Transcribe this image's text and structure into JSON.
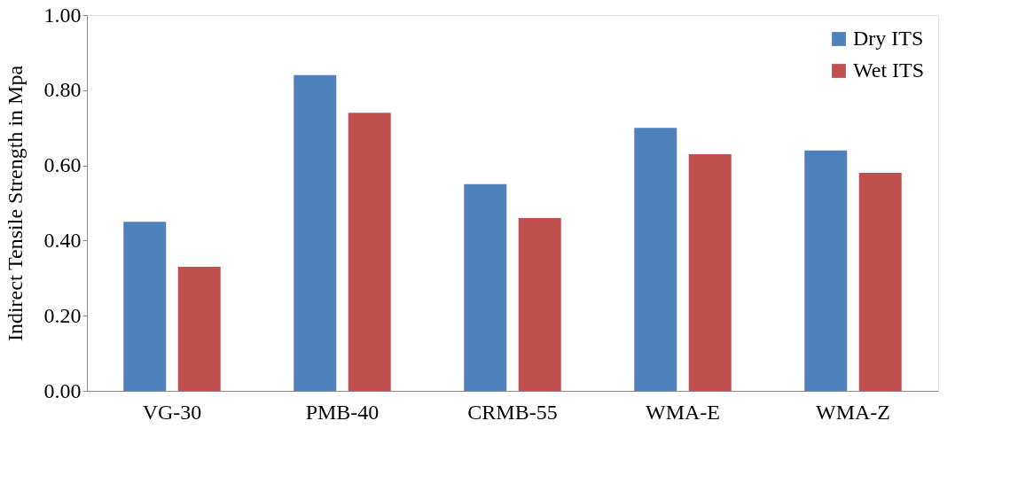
{
  "chart_data": {
    "type": "bar",
    "ylabel": "Indirect Tensile Strength in Mpa",
    "categories": [
      "VG-30",
      "PMB-40",
      "CRMB-55",
      "WMA-E",
      "WMA-Z"
    ],
    "series": [
      {
        "name": "Dry ITS",
        "color": "#4f81bd",
        "values": [
          0.45,
          0.84,
          0.55,
          0.7,
          0.64
        ]
      },
      {
        "name": "Wet ITS",
        "color": "#c0504d",
        "values": [
          0.33,
          0.74,
          0.46,
          0.63,
          0.58
        ]
      }
    ],
    "ylim": [
      0,
      1
    ],
    "yticks": [
      {
        "value": 0,
        "label": "0.00"
      },
      {
        "value": 0.2,
        "label": "0.20"
      },
      {
        "value": 0.4,
        "label": "0.40"
      },
      {
        "value": 0.6,
        "label": "0.60"
      },
      {
        "value": 0.8,
        "label": "0.80"
      },
      {
        "value": 1,
        "label": "1.00"
      }
    ],
    "grid": false,
    "legend": "top right"
  }
}
